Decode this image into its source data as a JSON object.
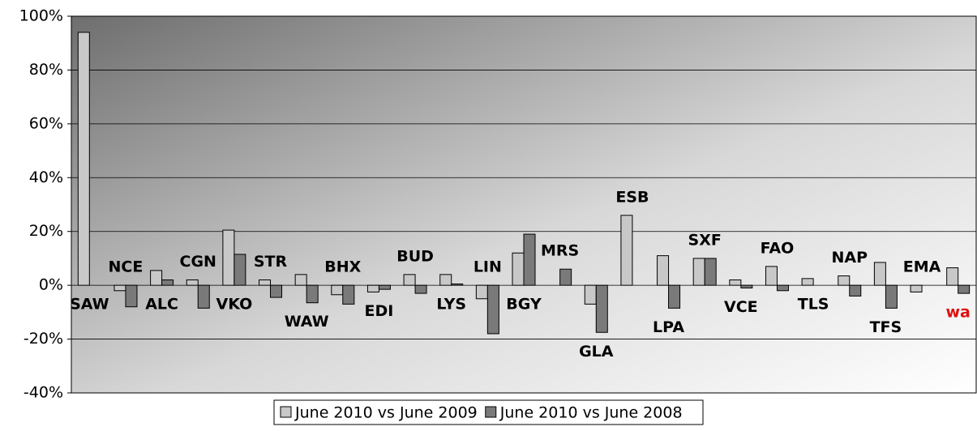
{
  "chart_data": {
    "type": "bar",
    "categories": [
      "SAW",
      "NCE",
      "ALC",
      "CGN",
      "VKO",
      "STR",
      "WAW",
      "BHX",
      "EDI",
      "BUD",
      "LYS",
      "LIN",
      "BGY",
      "MRS",
      "GLA",
      "ESB",
      "LPA",
      "SXF",
      "VCE",
      "FAO",
      "TLS",
      "NAP",
      "TFS",
      "EMA",
      "wa"
    ],
    "series": [
      {
        "name": "June 2010 vs June 2009",
        "color": "#c8c8c8",
        "values": [
          94,
          -2,
          5.5,
          2,
          20.5,
          2,
          4,
          -3.5,
          -2.5,
          4,
          4,
          -5,
          12,
          null,
          -7,
          26,
          11,
          10,
          2,
          7,
          2.5,
          3.5,
          8.5,
          -2.5,
          6.5
        ]
      },
      {
        "name": "June 2010 vs June 2008",
        "color": "#7a7a7a",
        "values": [
          null,
          -8,
          2,
          -8.5,
          11.5,
          -4.5,
          -6.5,
          -7,
          -1.5,
          -3,
          0.5,
          -18,
          19,
          6,
          -17.5,
          null,
          -8.5,
          10,
          -1,
          -2,
          null,
          -4,
          -8.5,
          null,
          -3
        ]
      }
    ],
    "ylim": [
      -40,
      100
    ],
    "yticks": [
      {
        "value": -40,
        "label": "-40%"
      },
      {
        "value": -20,
        "label": "-20%"
      },
      {
        "value": 0,
        "label": "0%"
      },
      {
        "value": 20,
        "label": "20%"
      },
      {
        "value": 40,
        "label": "40%"
      },
      {
        "value": 60,
        "label": "60%"
      },
      {
        "value": 80,
        "label": "80%"
      },
      {
        "value": 100,
        "label": "100%"
      }
    ],
    "grid": true,
    "legend": "bottom",
    "highlight_label_color": "#e01010"
  }
}
